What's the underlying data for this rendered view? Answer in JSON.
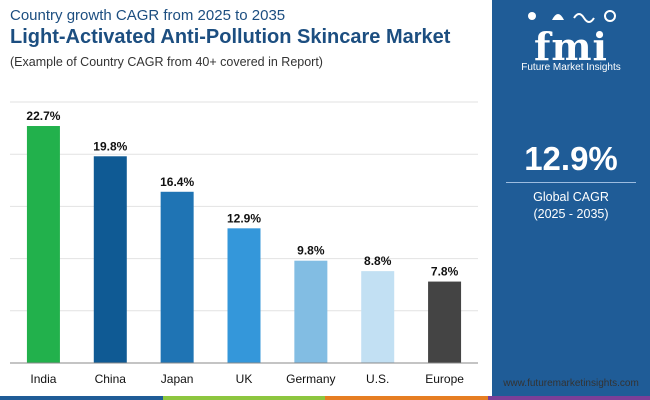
{
  "header": {
    "subtitle": "Country growth CAGR from 2025 to 2035",
    "title": "Light-Activated Anti-Pollution Skincare Market",
    "note": "(Example of Country CAGR from 40+ covered in Report)"
  },
  "sidebar": {
    "logo_text": "fmi",
    "logo_subtitle": "Future Market Insights",
    "kpi_value": "12.9%",
    "kpi_label": "Global CAGR",
    "kpi_period": "(2025 - 2035)"
  },
  "footer": {
    "website": "www.futuremarketinsights.com"
  },
  "colors": {
    "title": "#1c4e80",
    "panel": "#1f5c97",
    "strip": [
      "#1f5c97",
      "#8dc63f",
      "#e67e22",
      "#7b3f98"
    ]
  },
  "chart_data": {
    "type": "bar",
    "title": "Light-Activated Anti-Pollution Skincare Market",
    "xlabel": "",
    "ylabel": "",
    "ylim": [
      0,
      25
    ],
    "categories": [
      "India",
      "China",
      "Japan",
      "UK",
      "Germany",
      "U.S.",
      "Europe"
    ],
    "values": [
      22.7,
      19.8,
      16.4,
      12.9,
      9.8,
      8.8,
      7.8
    ],
    "value_labels": [
      "22.7%",
      "19.8%",
      "16.4%",
      "12.9%",
      "9.8%",
      "8.8%",
      "7.8%"
    ],
    "bar_colors": [
      "#22b14c",
      "#0f5a94",
      "#1f74b4",
      "#3497da",
      "#82bde3",
      "#c2e0f3",
      "#444444"
    ],
    "grid": true
  }
}
